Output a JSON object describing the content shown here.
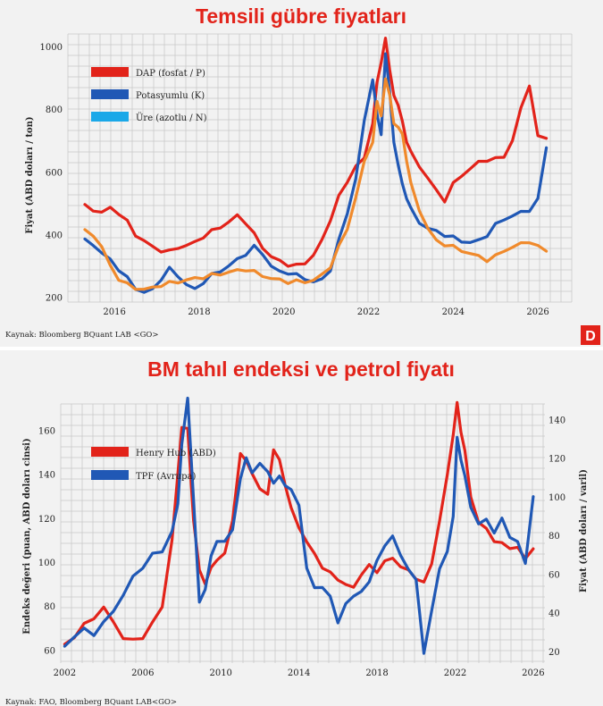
{
  "colors": {
    "red": "#e2231a",
    "blue": "#2058b5",
    "orange": "#f08a2c",
    "cyan": "#1aa8e8",
    "logo_bg": "#e2231a"
  },
  "logo": {
    "letter": "D"
  },
  "chart_data": [
    {
      "type": "line",
      "title": "Temsili gübre fiyatları",
      "xlabel": "",
      "ylabel": "Fiyat (ABD doları / ton)",
      "xlim": [
        2014.9,
        2026.8
      ],
      "ylim": [
        185,
        1040
      ],
      "yticks": [
        200,
        400,
        600,
        800,
        1000
      ],
      "xticks": [
        2016,
        2018,
        2020,
        2022,
        2024,
        2026
      ],
      "legend_items": [
        "DAP (fosfat / P)",
        "Potasyumlu (K)",
        "Üre (azotlu / N)"
      ],
      "source": "Kaynak: Bloomberg BQuant LAB <GO>",
      "series": [
        {
          "name": "DAP (fosfat / P)",
          "color": "#e2231a",
          "x": [
            2015.3,
            2015.5,
            2015.7,
            2015.9,
            2016.1,
            2016.3,
            2016.5,
            2016.7,
            2016.9,
            2017.1,
            2017.3,
            2017.5,
            2017.7,
            2017.9,
            2018.1,
            2018.3,
            2018.5,
            2018.7,
            2018.9,
            2019.1,
            2019.3,
            2019.5,
            2019.7,
            2019.9,
            2020.1,
            2020.3,
            2020.5,
            2020.7,
            2020.9,
            2021.1,
            2021.3,
            2021.5,
            2021.7,
            2021.9,
            2022.1,
            2022.2,
            2022.3,
            2022.4,
            2022.5,
            2022.6,
            2022.7,
            2022.8,
            2022.9,
            2023.0,
            2023.2,
            2023.4,
            2023.6,
            2023.8,
            2024.0,
            2024.2,
            2024.4,
            2024.6,
            2024.8,
            2025.0,
            2025.2,
            2025.4,
            2025.6,
            2025.8,
            2026.0,
            2026.2
          ],
          "values": [
            490,
            480,
            470,
            485,
            470,
            440,
            400,
            380,
            360,
            350,
            345,
            360,
            365,
            375,
            395,
            410,
            425,
            440,
            460,
            440,
            400,
            360,
            330,
            315,
            305,
            300,
            310,
            335,
            380,
            450,
            520,
            570,
            620,
            640,
            760,
            880,
            950,
            1030,
            920,
            850,
            810,
            760,
            700,
            660,
            620,
            580,
            540,
            510,
            560,
            590,
            610,
            630,
            640,
            640,
            650,
            700,
            800,
            880,
            710,
            710
          ]
        },
        {
          "name": "Potasyumlu (K)",
          "color": "#2058b5",
          "x": [
            2015.3,
            2015.5,
            2015.7,
            2015.9,
            2016.1,
            2016.3,
            2016.5,
            2016.7,
            2016.9,
            2017.1,
            2017.3,
            2017.5,
            2017.7,
            2017.9,
            2018.1,
            2018.3,
            2018.5,
            2018.7,
            2018.9,
            2019.1,
            2019.3,
            2019.5,
            2019.7,
            2019.9,
            2020.1,
            2020.3,
            2020.5,
            2020.7,
            2020.9,
            2021.1,
            2021.3,
            2021.5,
            2021.7,
            2021.9,
            2022.1,
            2022.2,
            2022.3,
            2022.4,
            2022.5,
            2022.6,
            2022.7,
            2022.8,
            2022.9,
            2023.0,
            2023.2,
            2023.4,
            2023.6,
            2023.8,
            2024.0,
            2024.2,
            2024.4,
            2024.6,
            2024.8,
            2025.0,
            2025.2,
            2025.4,
            2025.6,
            2025.8,
            2026.0,
            2026.2
          ],
          "values": [
            380,
            370,
            340,
            320,
            290,
            260,
            230,
            215,
            225,
            260,
            290,
            270,
            240,
            225,
            250,
            270,
            285,
            300,
            320,
            340,
            360,
            340,
            300,
            280,
            280,
            270,
            260,
            250,
            255,
            290,
            380,
            470,
            580,
            760,
            900,
            780,
            720,
            980,
            850,
            700,
            620,
            560,
            520,
            480,
            440,
            420,
            410,
            400,
            390,
            380,
            375,
            380,
            400,
            430,
            450,
            460,
            470,
            480,
            510,
            680
          ]
        },
        {
          "name": "Üre (azotlu / N)",
          "color": "#f08a2c",
          "x": [
            2015.3,
            2015.5,
            2015.7,
            2015.9,
            2016.1,
            2016.3,
            2016.5,
            2016.7,
            2016.9,
            2017.1,
            2017.3,
            2017.5,
            2017.7,
            2017.9,
            2018.1,
            2018.3,
            2018.5,
            2018.7,
            2018.9,
            2019.1,
            2019.3,
            2019.5,
            2019.7,
            2019.9,
            2020.1,
            2020.3,
            2020.5,
            2020.7,
            2020.9,
            2021.1,
            2021.3,
            2021.5,
            2021.7,
            2021.9,
            2022.1,
            2022.2,
            2022.3,
            2022.4,
            2022.5,
            2022.6,
            2022.7,
            2022.8,
            2022.9,
            2023.0,
            2023.2,
            2023.4,
            2023.6,
            2023.8,
            2024.0,
            2024.2,
            2024.4,
            2024.6,
            2024.8,
            2025.0,
            2025.2,
            2025.4,
            2025.6,
            2025.8,
            2026.0,
            2026.2
          ],
          "values": [
            410,
            400,
            360,
            300,
            260,
            240,
            230,
            225,
            230,
            240,
            245,
            250,
            255,
            260,
            265,
            270,
            275,
            280,
            285,
            290,
            280,
            270,
            260,
            255,
            250,
            250,
            250,
            255,
            270,
            300,
            360,
            420,
            520,
            630,
            700,
            820,
            780,
            900,
            840,
            760,
            740,
            720,
            640,
            560,
            480,
            420,
            380,
            370,
            360,
            350,
            340,
            330,
            320,
            330,
            350,
            360,
            370,
            380,
            360,
            350
          ]
        },
        {
          "name": "Üre (azotlu / N)",
          "color": "#1aa8e8",
          "x": [],
          "values": []
        }
      ]
    },
    {
      "type": "line",
      "title": "BM tahıl endeksi ve petrol fiyatı",
      "xlabel": "",
      "ylabel": "Endeks değeri (puan, ABD doları cinsi)",
      "ylabel_right": "Fiyat (ABD doları / varil)",
      "xlim": [
        2001.8,
        2026.6
      ],
      "ylim": [
        54,
        172
      ],
      "ylim_right": [
        14,
        148
      ],
      "yticks": [
        60,
        80,
        100,
        120,
        140,
        160
      ],
      "yticks_right": [
        20,
        40,
        60,
        80,
        100,
        120,
        140
      ],
      "xticks": [
        2002,
        2006,
        2010,
        2014,
        2018,
        2022,
        2026
      ],
      "legend_items": [
        "Henry Hub (ABD)",
        "TPF (Avrupa)"
      ],
      "source": "Kaynak: FAO, Bloomberg BQuant LAB<GO>",
      "series": [
        {
          "name": "Henry Hub (ABD)",
          "color": "#e2231a",
          "axis": "left",
          "x": [
            2002.0,
            2002.5,
            2003.0,
            2003.5,
            2004.0,
            2004.5,
            2005.0,
            2005.5,
            2006.0,
            2006.5,
            2007.0,
            2007.5,
            2007.8,
            2008.0,
            2008.3,
            2008.6,
            2008.9,
            2009.2,
            2009.5,
            2009.8,
            2010.2,
            2010.6,
            2011.0,
            2011.3,
            2011.6,
            2012.0,
            2012.4,
            2012.7,
            2013.0,
            2013.3,
            2013.6,
            2014.0,
            2014.4,
            2014.8,
            2015.2,
            2015.6,
            2016.0,
            2016.4,
            2016.8,
            2017.2,
            2017.6,
            2018.0,
            2018.4,
            2018.8,
            2019.2,
            2019.6,
            2020.0,
            2020.4,
            2020.8,
            2021.2,
            2021.6,
            2021.9,
            2022.1,
            2022.3,
            2022.5,
            2022.8,
            2023.2,
            2023.6,
            2024.0,
            2024.4,
            2024.8,
            2025.2,
            2025.6,
            2026.0
          ],
          "values": [
            62,
            66,
            72,
            74,
            80,
            72,
            66,
            64,
            66,
            72,
            80,
            110,
            140,
            162,
            160,
            120,
            96,
            90,
            98,
            100,
            105,
            118,
            150,
            146,
            140,
            134,
            130,
            152,
            146,
            135,
            125,
            115,
            110,
            103,
            98,
            95,
            92,
            90,
            88,
            95,
            98,
            96,
            100,
            102,
            98,
            96,
            93,
            90,
            100,
            118,
            140,
            158,
            172,
            160,
            150,
            130,
            118,
            115,
            110,
            108,
            107,
            106,
            102,
            106
          ]
        },
        {
          "name": "TPF (Avrupa)",
          "color": "#2058b5",
          "axis": "right",
          "x": [
            2002.0,
            2002.5,
            2003.0,
            2003.5,
            2004.0,
            2004.5,
            2005.0,
            2005.5,
            2006.0,
            2006.5,
            2007.0,
            2007.5,
            2007.8,
            2008.0,
            2008.3,
            2008.6,
            2008.9,
            2009.2,
            2009.5,
            2009.8,
            2010.2,
            2010.6,
            2011.0,
            2011.3,
            2011.6,
            2012.0,
            2012.4,
            2012.7,
            2013.0,
            2013.3,
            2013.6,
            2014.0,
            2014.4,
            2014.8,
            2015.2,
            2015.6,
            2016.0,
            2016.4,
            2016.8,
            2017.2,
            2017.6,
            2018.0,
            2018.4,
            2018.8,
            2019.2,
            2019.6,
            2020.0,
            2020.4,
            2020.8,
            2021.2,
            2021.6,
            2021.9,
            2022.1,
            2022.3,
            2022.5,
            2022.8,
            2023.2,
            2023.6,
            2024.0,
            2024.4,
            2024.8,
            2025.2,
            2025.6,
            2026.0
          ],
          "values": [
            22,
            28,
            32,
            28,
            36,
            40,
            50,
            58,
            64,
            70,
            72,
            82,
            96,
            128,
            150,
            100,
            45,
            52,
            70,
            76,
            78,
            82,
            110,
            120,
            112,
            118,
            112,
            108,
            110,
            106,
            104,
            95,
            64,
            52,
            54,
            48,
            35,
            45,
            48,
            52,
            55,
            68,
            74,
            80,
            70,
            62,
            58,
            18,
            42,
            62,
            72,
            90,
            130,
            120,
            110,
            95,
            86,
            88,
            82,
            88,
            80,
            76,
            66,
            100
          ]
        }
      ]
    }
  ]
}
